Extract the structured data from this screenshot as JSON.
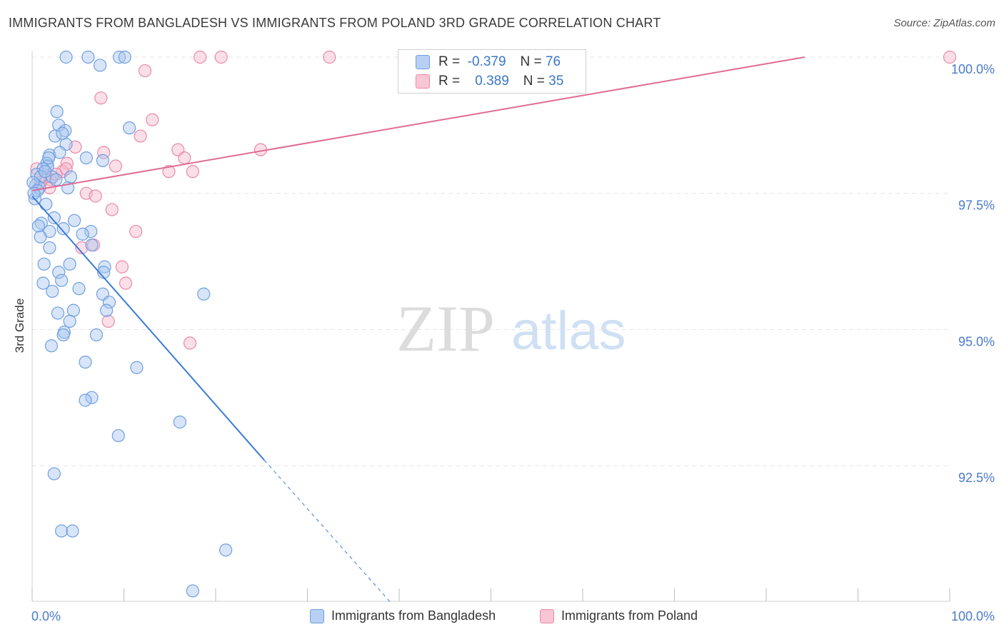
{
  "header": {
    "title": "IMMIGRANTS FROM BANGLADESH VS IMMIGRANTS FROM POLAND 3RD GRADE CORRELATION CHART",
    "source": "Source: ZipAtlas.com"
  },
  "watermark": {
    "zip": "ZIP",
    "atlas": "atlas"
  },
  "colors": {
    "blue_fill": "#a9c6f0",
    "blue_stroke": "#6f9fe0",
    "blue_line": "#3a7bd5",
    "pink_fill": "#f7b8cc",
    "pink_stroke": "#e98aa8",
    "pink_line": "#e06b94",
    "axis_text": "#4a7cc9",
    "grid": "#e4e4e4"
  },
  "legend": {
    "rows": [
      {
        "r_label": "R =",
        "r_value": "-0.379",
        "n_label": "N =",
        "n_value": "76"
      },
      {
        "r_label": "R =",
        "r_value": "0.389",
        "n_label": "N =",
        "n_value": "35"
      }
    ]
  },
  "chart_data": {
    "type": "scatter",
    "title": "IMMIGRANTS FROM BANGLADESH VS IMMIGRANTS FROM POLAND 3RD GRADE CORRELATION CHART",
    "xlabel": "",
    "ylabel": "3rd Grade",
    "xlim": [
      0,
      100
    ],
    "ylim": [
      90.2,
      100.2
    ],
    "x_tick_labels": [
      "0.0%",
      "100.0%"
    ],
    "y_ticks": [
      92.5,
      95.0,
      97.5,
      100.0
    ],
    "y_tick_labels": [
      "92.5%",
      "95.0%",
      "97.5%",
      "100.0%"
    ],
    "grid": true,
    "series": [
      {
        "name": "Immigrants from Bangladesh",
        "color": "blue",
        "r": -0.379,
        "n": 76,
        "trend": {
          "x": [
            0,
            25.3
          ],
          "y": [
            97.45,
            92.6
          ],
          "dashed_to": [
            39,
            90.0
          ]
        },
        "points": [
          [
            3.7,
            100.0
          ],
          [
            6.1,
            100.0
          ],
          [
            7.4,
            99.85
          ],
          [
            9.5,
            100.0
          ],
          [
            10.1,
            100.0
          ],
          [
            2.7,
            99.0
          ],
          [
            2.9,
            98.75
          ],
          [
            3.6,
            98.65
          ],
          [
            2.5,
            98.55
          ],
          [
            3.7,
            98.4
          ],
          [
            10.6,
            98.7
          ],
          [
            1.9,
            98.2
          ],
          [
            3.0,
            98.25
          ],
          [
            5.9,
            98.15
          ],
          [
            7.7,
            98.1
          ],
          [
            1.6,
            98.05
          ],
          [
            1.7,
            98.0
          ],
          [
            1.2,
            97.95
          ],
          [
            0.5,
            97.85
          ],
          [
            0.9,
            97.8
          ],
          [
            2.2,
            97.8
          ],
          [
            4.2,
            97.8
          ],
          [
            0.4,
            97.65
          ],
          [
            0.8,
            97.6
          ],
          [
            3.9,
            97.6
          ],
          [
            0.1,
            97.7
          ],
          [
            0.3,
            97.4
          ],
          [
            1.5,
            97.3
          ],
          [
            2.4,
            97.05
          ],
          [
            4.6,
            97.0
          ],
          [
            1.0,
            96.95
          ],
          [
            0.7,
            96.9
          ],
          [
            3.4,
            96.85
          ],
          [
            1.9,
            96.8
          ],
          [
            6.4,
            96.8
          ],
          [
            0.9,
            96.7
          ],
          [
            5.5,
            96.75
          ],
          [
            6.5,
            96.55
          ],
          [
            1.9,
            96.5
          ],
          [
            1.3,
            96.2
          ],
          [
            4.1,
            96.2
          ],
          [
            7.9,
            96.15
          ],
          [
            2.9,
            96.05
          ],
          [
            7.8,
            96.05
          ],
          [
            3.2,
            95.9
          ],
          [
            1.2,
            95.85
          ],
          [
            5.1,
            95.75
          ],
          [
            2.2,
            95.7
          ],
          [
            7.7,
            95.65
          ],
          [
            18.7,
            95.65
          ],
          [
            8.4,
            95.5
          ],
          [
            4.5,
            95.35
          ],
          [
            8.1,
            95.35
          ],
          [
            2.8,
            95.3
          ],
          [
            4.1,
            95.15
          ],
          [
            3.5,
            94.95
          ],
          [
            3.4,
            94.9
          ],
          [
            7.0,
            94.9
          ],
          [
            2.1,
            94.7
          ],
          [
            5.8,
            94.4
          ],
          [
            11.4,
            94.3
          ],
          [
            6.5,
            93.75
          ],
          [
            5.8,
            93.7
          ],
          [
            16.1,
            93.3
          ],
          [
            9.4,
            93.05
          ],
          [
            2.4,
            92.35
          ],
          [
            3.2,
            91.3
          ],
          [
            4.4,
            91.3
          ],
          [
            21.1,
            90.95
          ],
          [
            17.5,
            90.2
          ],
          [
            0.6,
            97.55
          ],
          [
            1.4,
            97.9
          ],
          [
            2.6,
            97.75
          ],
          [
            0.2,
            97.5
          ],
          [
            3.3,
            98.6
          ],
          [
            1.8,
            98.15
          ]
        ]
      },
      {
        "name": "Immigrants from Poland",
        "color": "pink",
        "r": 0.389,
        "n": 35,
        "trend": {
          "x": [
            0,
            84.2
          ],
          "y": [
            97.55,
            100.0
          ]
        },
        "points": [
          [
            18.3,
            100.0
          ],
          [
            20.6,
            100.0
          ],
          [
            32.4,
            100.0
          ],
          [
            100.0,
            100.0
          ],
          [
            12.3,
            99.75
          ],
          [
            7.5,
            99.25
          ],
          [
            13.1,
            98.85
          ],
          [
            11.8,
            98.55
          ],
          [
            4.7,
            98.35
          ],
          [
            7.8,
            98.25
          ],
          [
            15.9,
            98.3
          ],
          [
            24.9,
            98.3
          ],
          [
            16.6,
            98.15
          ],
          [
            9.1,
            98.0
          ],
          [
            3.8,
            98.05
          ],
          [
            14.9,
            97.9
          ],
          [
            17.5,
            97.9
          ],
          [
            0.5,
            97.95
          ],
          [
            1.5,
            97.8
          ],
          [
            2.0,
            97.75
          ],
          [
            3.3,
            97.9
          ],
          [
            3.7,
            97.95
          ],
          [
            1.9,
            97.6
          ],
          [
            5.9,
            97.5
          ],
          [
            6.9,
            97.45
          ],
          [
            8.7,
            97.2
          ],
          [
            11.3,
            96.8
          ],
          [
            6.7,
            96.55
          ],
          [
            5.4,
            96.5
          ],
          [
            9.8,
            96.15
          ],
          [
            10.2,
            95.85
          ],
          [
            8.3,
            95.15
          ],
          [
            17.2,
            94.75
          ],
          [
            0.9,
            97.7
          ],
          [
            2.6,
            97.85
          ]
        ]
      }
    ]
  }
}
